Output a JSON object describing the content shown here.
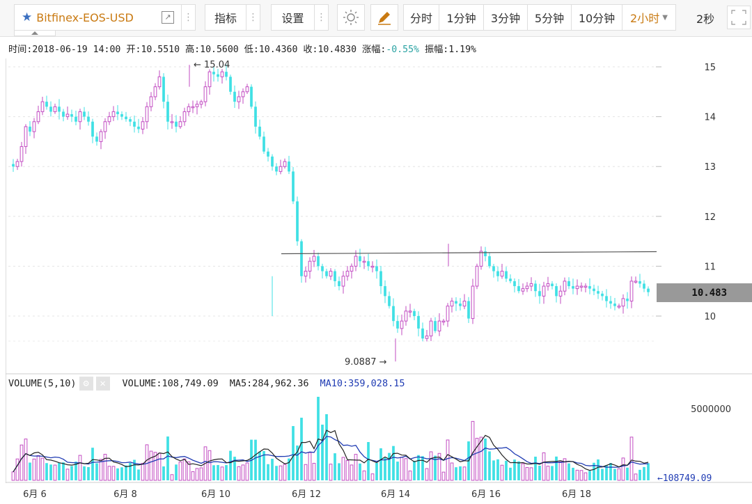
{
  "toolbar": {
    "symbol": "Bitfinex-EOS-USD",
    "indicators_label": "指标",
    "settings_label": "设置",
    "periods": [
      "分时",
      "1分钟",
      "3分钟",
      "5分钟",
      "10分钟"
    ],
    "active_period": "2小时",
    "refresh": "2秒"
  },
  "info": {
    "time_label": "时间:",
    "time": "2018-06-19 14:00",
    "open_label": "开:",
    "open": "10.5510",
    "high_label": "高:",
    "high": "10.5600",
    "low_label": "低:",
    "low": "10.4360",
    "close_label": "收:",
    "close": "10.4830",
    "change_label": "涨幅:",
    "change": "-0.55%",
    "amplitude_label": "振幅:",
    "amplitude": "1.19%"
  },
  "volume_panel": {
    "title": "VOLUME(5,10)",
    "volume_label": "VOLUME:",
    "volume": "108,749.09",
    "ma5_label": "MA5:",
    "ma5": "284,962.36",
    "ma10_label": "MA10:",
    "ma10": "359,028.15",
    "last_volume_marker": "108749.09"
  },
  "colors": {
    "up": "#c24bc2",
    "down": "#3fe0e4",
    "ma5": "#222222",
    "ma10": "#1f3bb3",
    "accent": "#c97a12"
  },
  "chart_data": [
    {
      "type": "candlestick",
      "y_ticks": [
        "10",
        "11",
        "12",
        "13",
        "14",
        "15"
      ],
      "ylim": [
        9.0,
        15.2
      ],
      "x_ticks": [
        "6月 6",
        "6月 8",
        "6月 10",
        "6月 12",
        "6月 14",
        "6月 16",
        "6月 18"
      ],
      "high_marker": "15.04",
      "low_marker": "9.0887",
      "last_price": "10.483",
      "horizontal_line": 11.25,
      "closes": [
        13.0,
        13.1,
        13.4,
        13.8,
        13.7,
        13.9,
        14.1,
        14.3,
        14.2,
        14.1,
        14.2,
        14.1,
        14.0,
        14.05,
        14.0,
        13.9,
        14.1,
        14.0,
        13.9,
        13.6,
        13.5,
        13.7,
        13.9,
        14.0,
        14.1,
        14.05,
        14.0,
        13.95,
        13.9,
        13.8,
        13.75,
        13.9,
        14.2,
        14.4,
        14.6,
        14.8,
        14.3,
        13.9,
        13.9,
        13.8,
        13.9,
        14.1,
        14.2,
        14.2,
        14.25,
        14.3,
        14.6,
        14.9,
        14.85,
        14.8,
        14.9,
        14.8,
        14.5,
        14.3,
        14.4,
        14.5,
        14.6,
        14.2,
        13.8,
        13.6,
        13.3,
        13.2,
        13.0,
        12.9,
        13.0,
        13.1,
        12.9,
        12.3,
        11.5,
        10.8,
        10.9,
        11.1,
        11.2,
        11.0,
        10.9,
        10.8,
        10.9,
        10.7,
        10.6,
        10.8,
        10.9,
        11.0,
        11.2,
        11.1,
        11.1,
        11.0,
        11.0,
        10.9,
        10.6,
        10.4,
        10.2,
        9.9,
        9.75,
        9.9,
        10.1,
        10.1,
        10.0,
        9.75,
        9.55,
        9.6,
        9.9,
        9.7,
        9.9,
        9.9,
        10.2,
        10.3,
        10.25,
        10.2,
        10.3,
        9.95,
        10.6,
        11.0,
        11.3,
        11.2,
        11.0,
        10.9,
        10.8,
        10.9,
        10.75,
        10.7,
        10.6,
        10.5,
        10.55,
        10.6,
        10.65,
        10.5,
        10.4,
        10.6,
        10.65,
        10.6,
        10.4,
        10.5,
        10.7,
        10.6,
        10.55,
        10.6,
        10.6,
        10.6,
        10.55,
        10.5,
        10.45,
        10.4,
        10.3,
        10.25,
        10.2,
        10.2,
        10.35,
        10.3,
        10.7,
        10.7,
        10.65,
        10.55,
        10.48
      ],
      "volume_ylabel": "5000000"
    }
  ]
}
